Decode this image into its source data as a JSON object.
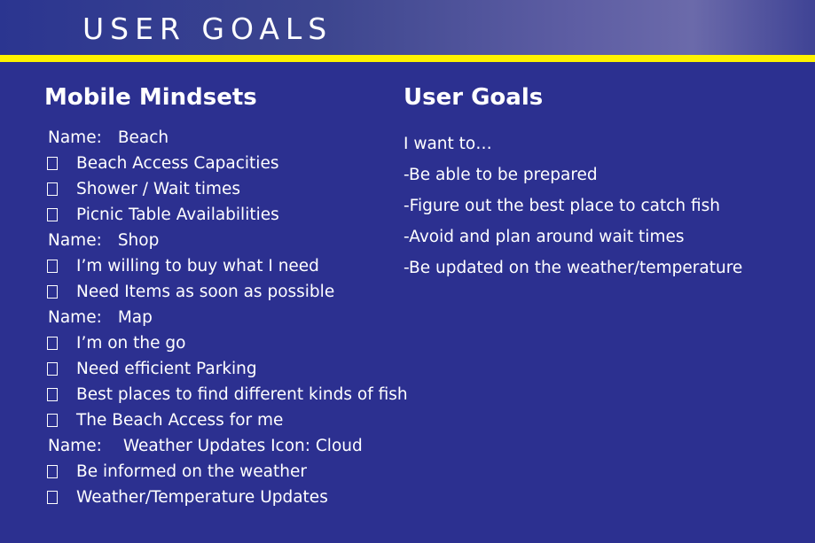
{
  "header": {
    "title": "USER GOALS"
  },
  "colors": {
    "background": "#2c3090",
    "accent_rule": "#fff200",
    "text": "#ffffff"
  },
  "mindsets": {
    "heading": "Mobile Mindsets",
    "groups": [
      {
        "name_label": "Name:",
        "name_value": "Beach",
        "items": [
          "Beach Access Capacities",
          "Shower / Wait times",
          "Picnic Table Availabilities"
        ]
      },
      {
        "name_label": "Name:",
        "name_value": "Shop",
        "items": [
          "I’m willing to buy what I need",
          "Need Items as soon as possible"
        ]
      },
      {
        "name_label": "Name:",
        "name_value": "Map",
        "items": [
          "I’m on the go",
          "Need efficient Parking",
          "Best places to find different kinds of fish",
          "The Beach Access for me"
        ]
      },
      {
        "name_label": "Name:",
        "name_value": "Weather Updates Icon: Cloud",
        "items": [
          "Be informed on the weather",
          "Weather/Temperature Updates"
        ]
      }
    ]
  },
  "goals": {
    "heading": "User Goals",
    "lines": [
      "I want to…",
      "-Be able to be prepared",
      "-Figure out the best place to catch fish",
      "-Avoid and plan around wait times",
      "-Be updated on the weather/temperature"
    ]
  }
}
